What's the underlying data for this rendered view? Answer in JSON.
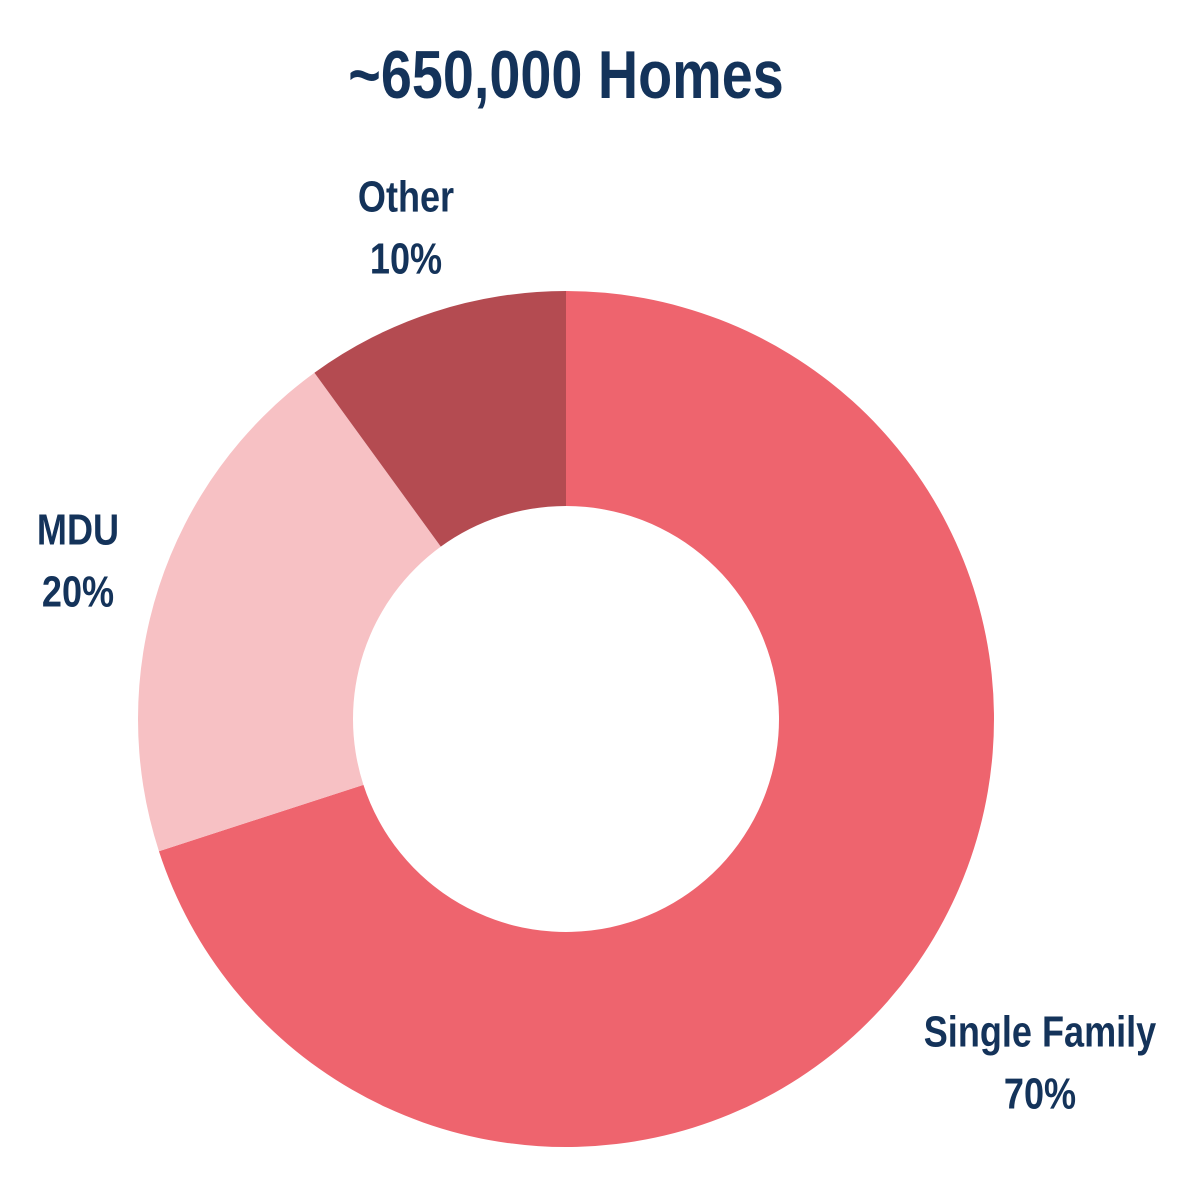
{
  "chart_data": {
    "type": "donut",
    "title": "~650,000 Homes",
    "categories": [
      "Single Family",
      "MDU",
      "Other"
    ],
    "values": [
      70,
      20,
      10
    ],
    "value_labels": [
      "70%",
      "20%",
      "10%"
    ],
    "colors": [
      "#ee646e",
      "#f7c1c4",
      "#b44b51"
    ]
  }
}
